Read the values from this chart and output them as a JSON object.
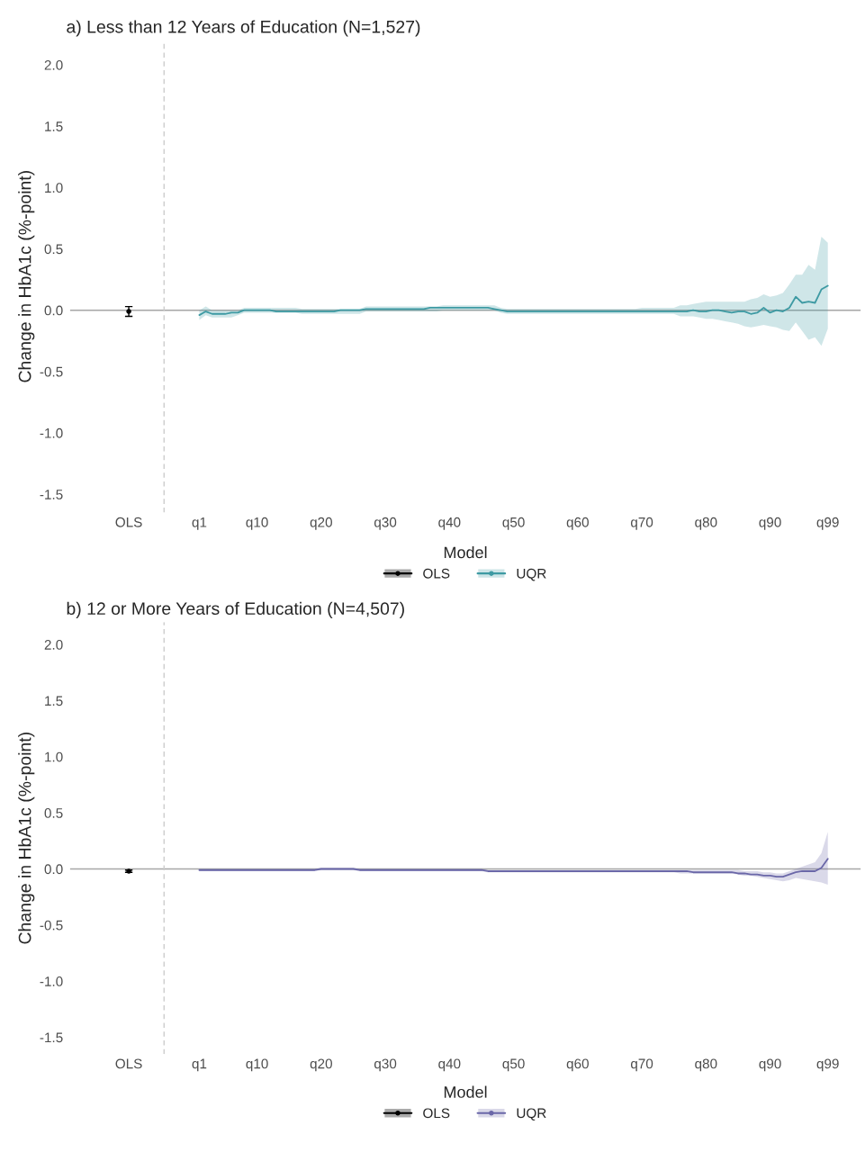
{
  "chart_data": [
    {
      "type": "line",
      "title": "a) Less than 12 Years of Education (N=1,527)",
      "ylabel": "Change in HbA1c (%-point)",
      "legend_title": "Model",
      "legend": "bottom",
      "grid": false,
      "categories": [
        "OLS",
        null,
        null,
        null,
        null,
        null,
        null,
        null,
        null,
        null,
        null,
        "q1",
        null,
        null,
        null,
        null,
        null,
        null,
        null,
        null,
        "q10",
        null,
        null,
        null,
        null,
        null,
        null,
        null,
        null,
        null,
        "q20",
        null,
        null,
        null,
        null,
        null,
        null,
        null,
        null,
        null,
        "q30",
        null,
        null,
        null,
        null,
        null,
        null,
        null,
        null,
        null,
        "q40",
        null,
        null,
        null,
        null,
        null,
        null,
        null,
        null,
        null,
        "q50",
        null,
        null,
        null,
        null,
        null,
        null,
        null,
        null,
        null,
        "q60",
        null,
        null,
        null,
        null,
        null,
        null,
        null,
        null,
        null,
        "q70",
        null,
        null,
        null,
        null,
        null,
        null,
        null,
        null,
        null,
        "q80",
        null,
        null,
        null,
        null,
        null,
        null,
        null,
        null,
        null,
        "q90",
        null,
        null,
        null,
        null,
        null,
        null,
        null,
        null,
        "q99"
      ],
      "ylim": [
        -1.65,
        2.2
      ],
      "yticks": [
        {
          "value": -1.5,
          "label": "-1.5"
        },
        {
          "value": -1.0,
          "label": "-1.0"
        },
        {
          "value": -0.5,
          "label": "-0.5"
        },
        {
          "value": 0.0,
          "label": "0.0"
        },
        {
          "value": 0.5,
          "label": "0.5"
        },
        {
          "value": 1.0,
          "label": "1.0"
        },
        {
          "value": 1.5,
          "label": "1.5"
        },
        {
          "value": 2.0,
          "label": "2.0"
        }
      ],
      "ref_lines": [
        {
          "axis": "y",
          "value": 0,
          "color": "#a6a6a6",
          "line_style": "solid"
        }
      ],
      "series": [
        {
          "name": "OLS",
          "type": "scatter",
          "color": "#000000",
          "values": [
            -0.01,
            null,
            null,
            null,
            null,
            null,
            null,
            null,
            null,
            null,
            null,
            null,
            null,
            null,
            null,
            null,
            null,
            null,
            null,
            null,
            null,
            null,
            null,
            null,
            null,
            null,
            null,
            null,
            null,
            null,
            null,
            null,
            null,
            null,
            null,
            null,
            null,
            null,
            null,
            null,
            null,
            null,
            null,
            null,
            null,
            null,
            null,
            null,
            null,
            null,
            null,
            null,
            null,
            null,
            null,
            null,
            null,
            null,
            null,
            null,
            null,
            null,
            null,
            null,
            null,
            null,
            null,
            null,
            null,
            null,
            null,
            null,
            null,
            null,
            null,
            null,
            null,
            null,
            null,
            null,
            null,
            null,
            null,
            null,
            null,
            null,
            null,
            null,
            null,
            null,
            null,
            null,
            null,
            null,
            null,
            null,
            null,
            null,
            null,
            null,
            null,
            null,
            null,
            null,
            null,
            null,
            null,
            null,
            null,
            null
          ],
          "errors": [
            0.04,
            null,
            null,
            null,
            null,
            null,
            null,
            null,
            null,
            null,
            null,
            null,
            null,
            null,
            null,
            null,
            null,
            null,
            null,
            null,
            null,
            null,
            null,
            null,
            null,
            null,
            null,
            null,
            null,
            null,
            null,
            null,
            null,
            null,
            null,
            null,
            null,
            null,
            null,
            null,
            null,
            null,
            null,
            null,
            null,
            null,
            null,
            null,
            null,
            null,
            null,
            null,
            null,
            null,
            null,
            null,
            null,
            null,
            null,
            null,
            null,
            null,
            null,
            null,
            null,
            null,
            null,
            null,
            null,
            null,
            null,
            null,
            null,
            null,
            null,
            null,
            null,
            null,
            null,
            null,
            null,
            null,
            null,
            null,
            null,
            null,
            null,
            null,
            null,
            null,
            null,
            null,
            null,
            null,
            null,
            null,
            null,
            null,
            null,
            null,
            null,
            null,
            null,
            null,
            null,
            null,
            null,
            null,
            null,
            null
          ]
        },
        {
          "name": "UQR",
          "color": "#3e9aa3",
          "values": [
            null,
            null,
            null,
            null,
            null,
            null,
            null,
            null,
            null,
            null,
            null,
            -0.04,
            -0.01,
            -0.03,
            -0.03,
            -0.03,
            -0.02,
            -0.02,
            0.0,
            0.0,
            0.0,
            0.0,
            0.0,
            -0.01,
            -0.01,
            -0.01,
            -0.01,
            -0.01,
            -0.01,
            -0.01,
            -0.01,
            -0.01,
            -0.01,
            0.0,
            0.0,
            0.0,
            0.0,
            0.01,
            0.01,
            0.01,
            0.01,
            0.01,
            0.01,
            0.01,
            0.01,
            0.01,
            0.01,
            0.02,
            0.02,
            0.02,
            0.02,
            0.02,
            0.02,
            0.02,
            0.02,
            0.02,
            0.02,
            0.01,
            0.0,
            -0.01,
            -0.01,
            -0.01,
            -0.01,
            -0.01,
            -0.01,
            -0.01,
            -0.01,
            -0.01,
            -0.01,
            -0.01,
            -0.01,
            -0.01,
            -0.01,
            -0.01,
            -0.01,
            -0.01,
            -0.01,
            -0.01,
            -0.01,
            -0.01,
            -0.01,
            -0.01,
            -0.01,
            -0.01,
            -0.01,
            -0.01,
            -0.01,
            -0.01,
            0.0,
            -0.01,
            -0.01,
            0.0,
            0.0,
            -0.01,
            -0.02,
            -0.01,
            -0.01,
            -0.03,
            -0.02,
            0.02,
            -0.02,
            0.0,
            -0.01,
            0.02,
            0.11,
            0.06,
            0.07,
            0.06,
            0.17,
            0.2
          ],
          "upper": [
            null,
            null,
            null,
            null,
            null,
            null,
            null,
            null,
            null,
            null,
            null,
            0.0,
            0.03,
            0.0,
            0.0,
            0.0,
            0.0,
            0.0,
            0.02,
            0.02,
            0.02,
            0.02,
            0.02,
            0.02,
            0.02,
            0.02,
            0.02,
            0.01,
            0.01,
            0.01,
            0.01,
            0.01,
            0.01,
            0.01,
            0.01,
            0.01,
            0.01,
            0.03,
            0.03,
            0.03,
            0.03,
            0.03,
            0.03,
            0.03,
            0.03,
            0.03,
            0.03,
            0.03,
            0.03,
            0.04,
            0.04,
            0.04,
            0.04,
            0.04,
            0.04,
            0.04,
            0.04,
            0.04,
            0.02,
            0.01,
            0.01,
            0.01,
            0.01,
            0.01,
            0.01,
            0.01,
            0.01,
            0.01,
            0.01,
            0.01,
            0.01,
            0.01,
            0.01,
            0.01,
            0.01,
            0.01,
            0.01,
            0.01,
            0.01,
            0.01,
            0.02,
            0.02,
            0.02,
            0.02,
            0.02,
            0.02,
            0.04,
            0.04,
            0.05,
            0.06,
            0.07,
            0.07,
            0.07,
            0.07,
            0.07,
            0.07,
            0.07,
            0.09,
            0.1,
            0.13,
            0.11,
            0.12,
            0.14,
            0.21,
            0.29,
            0.29,
            0.37,
            0.33,
            0.6,
            0.55
          ],
          "lower": [
            null,
            null,
            null,
            null,
            null,
            null,
            null,
            null,
            null,
            null,
            null,
            -0.08,
            -0.04,
            -0.06,
            -0.06,
            -0.06,
            -0.06,
            -0.04,
            -0.02,
            -0.02,
            -0.02,
            -0.02,
            -0.02,
            -0.02,
            -0.02,
            -0.02,
            -0.02,
            -0.03,
            -0.03,
            -0.03,
            -0.03,
            -0.03,
            -0.03,
            -0.03,
            -0.03,
            -0.03,
            -0.03,
            -0.01,
            -0.01,
            -0.01,
            -0.01,
            -0.01,
            -0.01,
            -0.01,
            -0.01,
            -0.01,
            -0.01,
            -0.01,
            -0.01,
            0.0,
            0.0,
            0.0,
            0.0,
            0.0,
            0.0,
            0.0,
            0.0,
            0.0,
            -0.02,
            -0.03,
            -0.03,
            -0.03,
            -0.03,
            -0.03,
            -0.03,
            -0.03,
            -0.03,
            -0.03,
            -0.03,
            -0.03,
            -0.03,
            -0.03,
            -0.03,
            -0.03,
            -0.03,
            -0.03,
            -0.03,
            -0.03,
            -0.03,
            -0.03,
            -0.03,
            -0.03,
            -0.03,
            -0.03,
            -0.03,
            -0.03,
            -0.05,
            -0.05,
            -0.05,
            -0.06,
            -0.07,
            -0.07,
            -0.08,
            -0.09,
            -0.1,
            -0.11,
            -0.13,
            -0.14,
            -0.13,
            -0.12,
            -0.13,
            -0.14,
            -0.16,
            -0.17,
            -0.1,
            -0.17,
            -0.24,
            -0.22,
            -0.29,
            -0.15
          ]
        }
      ]
    },
    {
      "type": "line",
      "title": "b) 12 or More Years of Education (N=4,507)",
      "ylabel": "Change in HbA1c (%-point)",
      "legend_title": "Model",
      "legend": "bottom",
      "grid": false,
      "categories": [
        "OLS",
        null,
        null,
        null,
        null,
        null,
        null,
        null,
        null,
        null,
        null,
        "q1",
        null,
        null,
        null,
        null,
        null,
        null,
        null,
        null,
        "q10",
        null,
        null,
        null,
        null,
        null,
        null,
        null,
        null,
        null,
        "q20",
        null,
        null,
        null,
        null,
        null,
        null,
        null,
        null,
        null,
        "q30",
        null,
        null,
        null,
        null,
        null,
        null,
        null,
        null,
        null,
        "q40",
        null,
        null,
        null,
        null,
        null,
        null,
        null,
        null,
        null,
        "q50",
        null,
        null,
        null,
        null,
        null,
        null,
        null,
        null,
        null,
        "q60",
        null,
        null,
        null,
        null,
        null,
        null,
        null,
        null,
        null,
        "q70",
        null,
        null,
        null,
        null,
        null,
        null,
        null,
        null,
        null,
        "q80",
        null,
        null,
        null,
        null,
        null,
        null,
        null,
        null,
        null,
        "q90",
        null,
        null,
        null,
        null,
        null,
        null,
        null,
        null,
        "q99"
      ],
      "ylim": [
        -1.65,
        2.2
      ],
      "yticks": [
        {
          "value": -1.5,
          "label": "-1.5"
        },
        {
          "value": -1.0,
          "label": "-1.0"
        },
        {
          "value": -0.5,
          "label": "-0.5"
        },
        {
          "value": 0.0,
          "label": "0.0"
        },
        {
          "value": 0.5,
          "label": "0.5"
        },
        {
          "value": 1.0,
          "label": "1.0"
        },
        {
          "value": 1.5,
          "label": "1.5"
        },
        {
          "value": 2.0,
          "label": "2.0"
        }
      ],
      "ref_lines": [
        {
          "axis": "y",
          "value": 0,
          "color": "#a6a6a6",
          "line_style": "solid"
        }
      ],
      "series": [
        {
          "name": "OLS",
          "type": "scatter",
          "color": "#000000",
          "values": [
            -0.02,
            null,
            null,
            null,
            null,
            null,
            null,
            null,
            null,
            null,
            null,
            null,
            null,
            null,
            null,
            null,
            null,
            null,
            null,
            null,
            null,
            null,
            null,
            null,
            null,
            null,
            null,
            null,
            null,
            null,
            null,
            null,
            null,
            null,
            null,
            null,
            null,
            null,
            null,
            null,
            null,
            null,
            null,
            null,
            null,
            null,
            null,
            null,
            null,
            null,
            null,
            null,
            null,
            null,
            null,
            null,
            null,
            null,
            null,
            null,
            null,
            null,
            null,
            null,
            null,
            null,
            null,
            null,
            null,
            null,
            null,
            null,
            null,
            null,
            null,
            null,
            null,
            null,
            null,
            null,
            null,
            null,
            null,
            null,
            null,
            null,
            null,
            null,
            null,
            null,
            null,
            null,
            null,
            null,
            null,
            null,
            null,
            null,
            null,
            null,
            null,
            null,
            null,
            null,
            null,
            null,
            null,
            null,
            null,
            null
          ],
          "errors": [
            0.01,
            null,
            null,
            null,
            null,
            null,
            null,
            null,
            null,
            null,
            null,
            null,
            null,
            null,
            null,
            null,
            null,
            null,
            null,
            null,
            null,
            null,
            null,
            null,
            null,
            null,
            null,
            null,
            null,
            null,
            null,
            null,
            null,
            null,
            null,
            null,
            null,
            null,
            null,
            null,
            null,
            null,
            null,
            null,
            null,
            null,
            null,
            null,
            null,
            null,
            null,
            null,
            null,
            null,
            null,
            null,
            null,
            null,
            null,
            null,
            null,
            null,
            null,
            null,
            null,
            null,
            null,
            null,
            null,
            null,
            null,
            null,
            null,
            null,
            null,
            null,
            null,
            null,
            null,
            null,
            null,
            null,
            null,
            null,
            null,
            null,
            null,
            null,
            null,
            null,
            null,
            null,
            null,
            null,
            null,
            null,
            null,
            null,
            null,
            null,
            null,
            null,
            null,
            null,
            null,
            null,
            null,
            null,
            null,
            null
          ]
        },
        {
          "name": "UQR",
          "color": "#6a67a8",
          "values": [
            null,
            null,
            null,
            null,
            null,
            null,
            null,
            null,
            null,
            null,
            null,
            -0.01,
            -0.01,
            -0.01,
            -0.01,
            -0.01,
            -0.01,
            -0.01,
            -0.01,
            -0.01,
            -0.01,
            -0.01,
            -0.01,
            -0.01,
            -0.01,
            -0.01,
            -0.01,
            -0.01,
            -0.01,
            -0.01,
            0.0,
            0.0,
            0.0,
            0.0,
            0.0,
            0.0,
            -0.01,
            -0.01,
            -0.01,
            -0.01,
            -0.01,
            -0.01,
            -0.01,
            -0.01,
            -0.01,
            -0.01,
            -0.01,
            -0.01,
            -0.01,
            -0.01,
            -0.01,
            -0.01,
            -0.01,
            -0.01,
            -0.01,
            -0.01,
            -0.02,
            -0.02,
            -0.02,
            -0.02,
            -0.02,
            -0.02,
            -0.02,
            -0.02,
            -0.02,
            -0.02,
            -0.02,
            -0.02,
            -0.02,
            -0.02,
            -0.02,
            -0.02,
            -0.02,
            -0.02,
            -0.02,
            -0.02,
            -0.02,
            -0.02,
            -0.02,
            -0.02,
            -0.02,
            -0.02,
            -0.02,
            -0.02,
            -0.02,
            -0.02,
            -0.02,
            -0.02,
            -0.03,
            -0.03,
            -0.03,
            -0.03,
            -0.03,
            -0.03,
            -0.03,
            -0.04,
            -0.04,
            -0.05,
            -0.05,
            -0.06,
            -0.06,
            -0.07,
            -0.07,
            -0.05,
            -0.03,
            -0.02,
            -0.02,
            -0.02,
            0.01,
            0.09
          ],
          "upper": [
            null,
            null,
            null,
            null,
            null,
            null,
            null,
            null,
            null,
            null,
            null,
            0.0,
            0.0,
            0.0,
            0.0,
            0.0,
            0.0,
            0.0,
            0.0,
            0.0,
            0.0,
            0.0,
            0.0,
            0.0,
            0.0,
            0.0,
            0.0,
            0.0,
            0.0,
            0.0,
            0.01,
            0.01,
            0.01,
            0.01,
            0.01,
            0.01,
            0.0,
            0.0,
            0.0,
            0.0,
            0.0,
            0.0,
            0.0,
            0.0,
            0.0,
            0.0,
            0.0,
            0.0,
            0.0,
            0.0,
            0.0,
            0.0,
            0.0,
            0.0,
            0.0,
            0.0,
            -0.01,
            -0.01,
            -0.01,
            -0.01,
            -0.01,
            -0.01,
            -0.01,
            -0.01,
            -0.01,
            -0.01,
            -0.01,
            -0.01,
            -0.01,
            -0.01,
            -0.01,
            -0.01,
            -0.01,
            -0.01,
            -0.01,
            -0.01,
            -0.01,
            -0.01,
            -0.01,
            -0.01,
            -0.01,
            -0.01,
            -0.01,
            -0.01,
            -0.01,
            -0.01,
            -0.01,
            -0.01,
            -0.01,
            -0.01,
            -0.01,
            -0.01,
            -0.01,
            -0.01,
            -0.01,
            -0.01,
            -0.02,
            -0.02,
            -0.02,
            -0.03,
            -0.03,
            -0.04,
            -0.04,
            -0.02,
            0.0,
            0.02,
            0.04,
            0.06,
            0.14,
            0.33
          ],
          "lower": [
            null,
            null,
            null,
            null,
            null,
            null,
            null,
            null,
            null,
            null,
            null,
            -0.02,
            -0.02,
            -0.02,
            -0.02,
            -0.02,
            -0.02,
            -0.02,
            -0.02,
            -0.02,
            -0.02,
            -0.02,
            -0.02,
            -0.02,
            -0.02,
            -0.02,
            -0.02,
            -0.02,
            -0.02,
            -0.02,
            -0.01,
            -0.01,
            -0.01,
            -0.01,
            -0.01,
            -0.01,
            -0.02,
            -0.02,
            -0.02,
            -0.02,
            -0.02,
            -0.02,
            -0.02,
            -0.02,
            -0.02,
            -0.02,
            -0.02,
            -0.02,
            -0.02,
            -0.02,
            -0.02,
            -0.02,
            -0.02,
            -0.02,
            -0.02,
            -0.02,
            -0.03,
            -0.03,
            -0.03,
            -0.03,
            -0.03,
            -0.03,
            -0.03,
            -0.03,
            -0.03,
            -0.03,
            -0.03,
            -0.03,
            -0.03,
            -0.03,
            -0.03,
            -0.03,
            -0.03,
            -0.03,
            -0.03,
            -0.03,
            -0.03,
            -0.03,
            -0.03,
            -0.03,
            -0.03,
            -0.03,
            -0.03,
            -0.03,
            -0.03,
            -0.03,
            -0.04,
            -0.04,
            -0.04,
            -0.04,
            -0.04,
            -0.04,
            -0.04,
            -0.04,
            -0.04,
            -0.05,
            -0.06,
            -0.06,
            -0.07,
            -0.08,
            -0.09,
            -0.1,
            -0.11,
            -0.1,
            -0.08,
            -0.09,
            -0.1,
            -0.11,
            -0.12,
            -0.14
          ]
        }
      ]
    }
  ]
}
